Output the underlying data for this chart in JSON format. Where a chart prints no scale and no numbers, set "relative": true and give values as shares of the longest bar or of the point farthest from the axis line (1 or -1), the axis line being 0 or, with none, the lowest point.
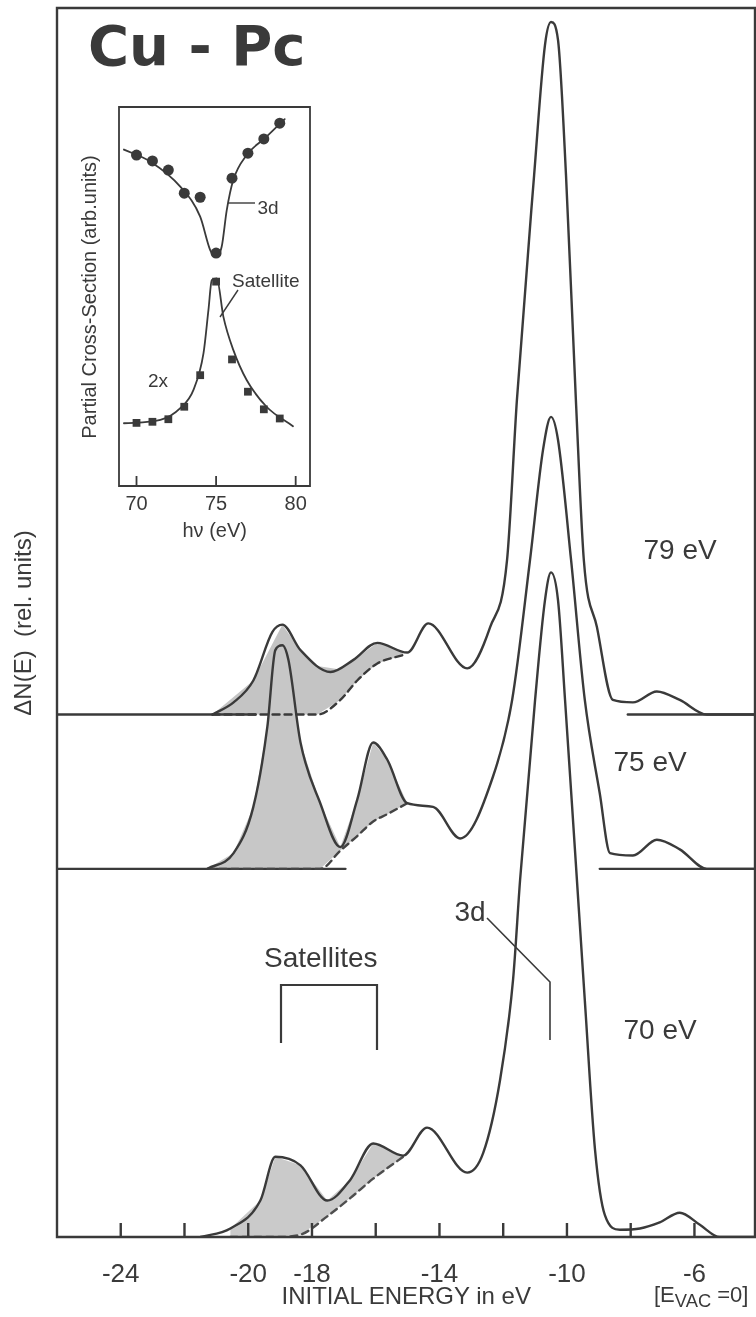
{
  "chart_data": [
    {
      "type": "line",
      "title": "Cu - Pc",
      "xlabel": "INITIAL ENERGY in eV",
      "ylabel": "ΔN(E)  (rel. units)",
      "relative": true,
      "xlim": [
        -26,
        -4.1
      ],
      "xticks": [
        -24,
        {
          "value": -22,
          "label": null
        },
        -20,
        -18,
        {
          "value": -16,
          "label": null
        },
        -14,
        {
          "value": -12,
          "label": null
        },
        -10,
        {
          "value": -8,
          "label": null
        },
        -6
      ],
      "series": [
        {
          "color": "#3a3a3a",
          "x": [
            -21.12,
            -20.46,
            -19.84,
            -19.24,
            -18.93,
            -18.36,
            -17.42,
            -16.7,
            -15.95,
            -15.01,
            -14.35,
            -13.13,
            -12.41,
            -11.88,
            -11.57,
            -11.03,
            -10.69,
            -10.5,
            -10.28,
            -10.03,
            -9.72,
            -9.47,
            -9.06,
            -8.56,
            -7.93,
            -7.18,
            -6.46,
            -5.61,
            -4.1
          ],
          "values": [
            0.43,
            0.44,
            0.458,
            0.498,
            0.504,
            0.483,
            0.465,
            0.475,
            0.489,
            0.481,
            0.505,
            0.468,
            0.502,
            0.557,
            0.689,
            0.874,
            0.981,
            1.0,
            0.985,
            0.874,
            0.689,
            0.557,
            0.502,
            0.442,
            0.44,
            0.449,
            0.442,
            0.43,
            0.43
          ]
        },
        {
          "color": "#3a3a3a",
          "x": [
            -21.28,
            -20.46,
            -19.84,
            -19.4,
            -19.15,
            -18.93,
            -18.74,
            -18.36,
            -17.74,
            -17.11,
            -16.58,
            -16.08,
            -15.64,
            -15.01,
            -14.2,
            -13.35,
            -12.32,
            -11.72,
            -11.16,
            -10.75,
            -10.5,
            -10.28,
            -9.87,
            -9.44,
            -8.97,
            -8.65,
            -7.93,
            -7.18,
            -6.46,
            -5.61,
            -4.1
          ],
          "values": [
            0.303,
            0.316,
            0.354,
            0.42,
            0.483,
            0.487,
            0.475,
            0.407,
            0.357,
            0.321,
            0.36,
            0.407,
            0.393,
            0.357,
            0.354,
            0.328,
            0.379,
            0.442,
            0.557,
            0.648,
            0.675,
            0.656,
            0.557,
            0.442,
            0.365,
            0.316,
            0.314,
            0.327,
            0.319,
            0.303,
            0.303
          ]
        },
        {
          "color": "#3a3a3a",
          "x": [
            -21.5,
            -20.56,
            -19.62,
            -19.15,
            -18.36,
            -17.52,
            -16.8,
            -16.08,
            -15.14,
            -14.39,
            -13.13,
            -12.63,
            -12.1,
            -11.69,
            -11.47,
            -11.0,
            -10.69,
            -10.5,
            -10.28,
            -10.06,
            -9.75,
            -9.44,
            -9.12,
            -8.81,
            -8.34,
            -7.71,
            -7.09,
            -6.46,
            -5.83,
            -5.21,
            -4.1
          ],
          "values": [
            0,
            0.007,
            0.03,
            0.066,
            0.059,
            0.03,
            0.047,
            0.077,
            0.067,
            0.09,
            0.053,
            0.069,
            0.129,
            0.212,
            0.294,
            0.442,
            0.524,
            0.547,
            0.524,
            0.442,
            0.319,
            0.195,
            0.072,
            0.018,
            0.006,
            0.007,
            0.012,
            0.02,
            0.01,
            0,
            0
          ]
        },
        {
          "color": "#3a3a3a",
          "line_style": "dashed",
          "x": [
            -21.12,
            -19.84,
            -18.93,
            -18.36,
            -17.83,
            -17.11,
            -16.58,
            -15.95,
            -15.14
          ],
          "values": [
            0.43,
            0.43,
            0.43,
            0.43,
            0.43,
            0.442,
            0.458,
            0.472,
            0.479
          ],
          "lower": [
            0.43,
            0.43,
            0.43,
            0.43,
            0.43,
            0.442,
            0.458,
            0.472,
            0.479
          ],
          "upper": [
            0.43,
            0.458,
            0.504,
            0.483,
            0.47,
            0.467,
            0.477,
            0.489,
            0.482
          ]
        },
        {
          "color": "#444444",
          "line_style": "dashed",
          "x": [
            -21.28,
            -20.46,
            -19.84,
            -19.4,
            -19.15,
            -18.93,
            -18.74,
            -18.36,
            -17.74,
            -17.11,
            -16.58,
            -16.08,
            -15.64,
            -15.01
          ],
          "values": [
            0.303,
            0.303,
            0.303,
            0.303,
            0.303,
            0.303,
            0.303,
            0.303,
            0.303,
            0.318,
            0.33,
            0.342,
            0.348,
            0.357
          ],
          "lower": [
            0.303,
            0.303,
            0.303,
            0.303,
            0.303,
            0.303,
            0.303,
            0.303,
            0.303,
            0.318,
            0.33,
            0.342,
            0.348,
            0.357
          ],
          "upper": [
            0.303,
            0.316,
            0.354,
            0.42,
            0.483,
            0.487,
            0.475,
            0.407,
            0.357,
            0.321,
            0.36,
            0.407,
            0.393,
            0.357
          ]
        },
        {
          "color": "#4e4e4e",
          "line_style": "dashed",
          "x": [
            -20.56,
            -19.62,
            -19.15,
            -18.36,
            -17.52,
            -16.8,
            -16.08,
            -15.14
          ],
          "values": [
            0,
            0,
            0,
            0.002,
            0.017,
            0.032,
            0.048,
            0.066
          ],
          "lower": [
            0,
            0,
            0,
            0.002,
            0.017,
            0.032,
            0.048,
            0.066
          ],
          "upper": [
            0.007,
            0.03,
            0.066,
            0.059,
            0.03,
            0.047,
            0.077,
            0.067
          ]
        },
        {
          "color": "#3a3a3a",
          "x": [
            -26,
            -19.77
          ],
          "values": [
            0.43,
            0.43
          ]
        },
        {
          "color": "#3a3a3a",
          "x": [
            -8.09,
            -4.1
          ],
          "values": [
            0.43,
            0.43
          ]
        },
        {
          "color": "#3a3a3a",
          "x": [
            -26,
            -16.95
          ],
          "values": [
            0.303,
            0.303
          ]
        },
        {
          "color": "#3a3a3a",
          "x": [
            -8.97,
            -4.1
          ],
          "values": [
            0.303,
            0.303
          ]
        }
      ],
      "annotations": [
        "79 eV",
        "75 eV",
        "70 eV",
        "Satellites",
        "3d",
        "[E$_{VAC}$ =0]"
      ]
    },
    {
      "type": "line",
      "xlabel": "hν (eV)",
      "ylabel": "Partial Cross-Section (arb.units)",
      "relative": true,
      "xlim": [
        68.9,
        80.9
      ],
      "xticks": [
        70,
        75,
        80
      ],
      "series": [
        {
          "color": "#3a3a3a",
          "x": [
            69.21,
            70.88,
            72.75,
            74.0,
            74.63,
            74.94,
            75.35,
            75.67,
            76.08,
            76.92,
            78.17,
            79.31
          ],
          "values": [
            0.917,
            0.884,
            0.816,
            0.734,
            0.643,
            0.625,
            0.652,
            0.752,
            0.834,
            0.902,
            0.952,
            1.0
          ]
        },
        {
          "type": "scatter",
          "marker": "circle",
          "color": "#3a3a3a",
          "x": [
            70,
            71,
            72,
            73,
            74,
            75,
            76,
            77,
            78,
            79
          ],
          "values": [
            0.902,
            0.886,
            0.861,
            0.798,
            0.787,
            0.635,
            0.839,
            0.907,
            0.946,
            0.989
          ]
        },
        {
          "color": "#3a3a3a",
          "x": [
            69.21,
            71.5,
            72.75,
            73.58,
            74.21,
            74.52,
            74.73,
            75.04,
            75.46,
            76.08,
            76.92,
            78.17,
            79.83
          ],
          "values": [
            0.171,
            0.18,
            0.212,
            0.262,
            0.362,
            0.48,
            0.561,
            0.566,
            0.461,
            0.371,
            0.289,
            0.216,
            0.163
          ]
        },
        {
          "type": "scatter",
          "marker": "square",
          "color": "#3a3a3a",
          "x": [
            70,
            71,
            72,
            73,
            74,
            75,
            76,
            77,
            78,
            79
          ],
          "values": [
            0.172,
            0.175,
            0.182,
            0.216,
            0.302,
            0.557,
            0.345,
            0.257,
            0.209,
            0.184
          ]
        }
      ],
      "annotations": [
        "3d",
        "Satellite",
        "2x"
      ]
    }
  ]
}
